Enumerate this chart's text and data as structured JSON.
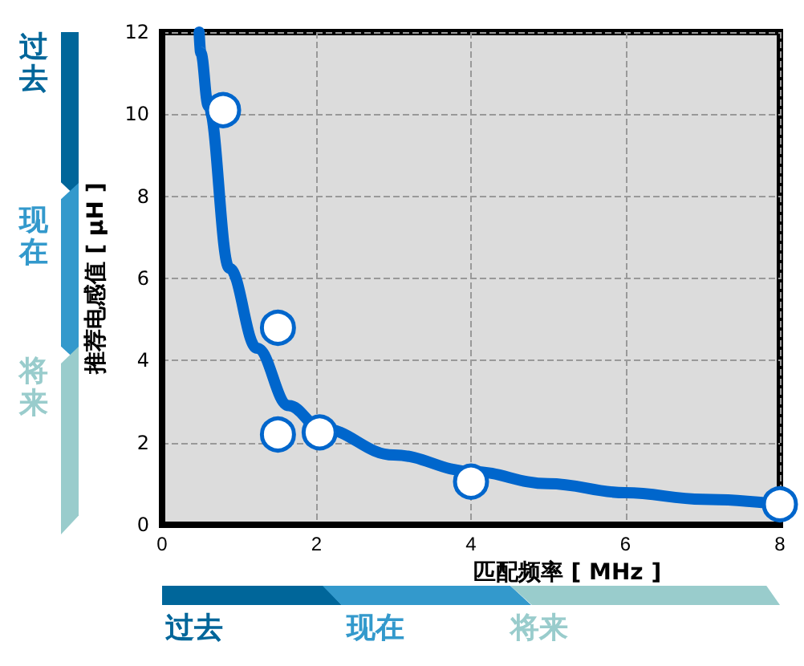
{
  "chart_data": {
    "type": "scatter",
    "xlabel": "匹配频率 [ MHz ]",
    "ylabel": "推荐电感值 [ μH ]",
    "xlim": [
      0,
      8
    ],
    "xticks": [
      0,
      2,
      4,
      6,
      8
    ],
    "ylim": [
      0,
      12
    ],
    "yticks": [
      0,
      2,
      4,
      6,
      8,
      10,
      12
    ],
    "grid": true,
    "annotations": [
      "过去",
      "现在",
      "将来",
      "过去",
      "现在",
      "将来"
    ],
    "series": [
      {
        "type": "line",
        "color": "#0066cc",
        "marker": "none",
        "line_style": "solid",
        "x": [
          0.48,
          0.5,
          0.6,
          0.87,
          1.23,
          1.64,
          2.06,
          3,
          4,
          5,
          6,
          7,
          8
        ],
        "values": [
          12,
          11.5,
          10.2,
          6.25,
          4.3,
          2.9,
          2.35,
          1.7,
          1.3,
          1.0,
          0.78,
          0.62,
          0.5
        ]
      },
      {
        "color": "#0066cc",
        "marker": "circle",
        "x": [
          0.79,
          1.5,
          1.5,
          2.04,
          4.0,
          8.0
        ],
        "values": [
          10.1,
          4.8,
          2.2,
          2.25,
          1.05,
          0.5
        ]
      }
    ]
  }
}
